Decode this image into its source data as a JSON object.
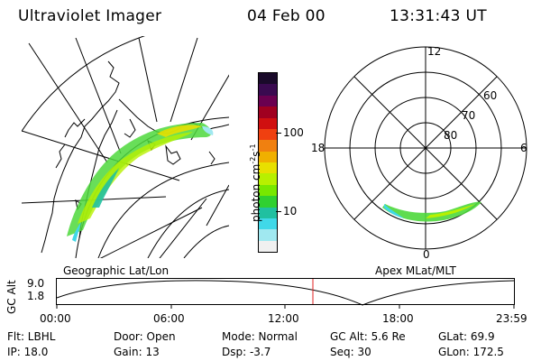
{
  "header": {
    "instrument": "Ultraviolet Imager",
    "date": "04 Feb 00",
    "time": "13:31:43 UT"
  },
  "colorbar": {
    "unit_label": "photon cm",
    "unit_exp1": "-2",
    "unit_s": "s",
    "unit_exp2": "-1",
    "tick_100": "100",
    "tick_10": "10",
    "colors": [
      "#1a0a2a",
      "#3a0a50",
      "#6a0050",
      "#a00020",
      "#d01010",
      "#f04010",
      "#f08010",
      "#f0b000",
      "#e8e000",
      "#b8f000",
      "#78e800",
      "#30d030",
      "#20c0a0",
      "#40d8e8",
      "#a0e8f0",
      "#f0f0f0"
    ]
  },
  "geo_panel": {
    "caption": "Geographic Lat/Lon"
  },
  "polar_panel": {
    "caption": "Apex MLat/MLT",
    "mlt_labels": {
      "top": "12",
      "left": "18",
      "right": "6",
      "bottom": "0"
    },
    "lat_labels": [
      "60",
      "70",
      "80"
    ]
  },
  "altitude_plot": {
    "ylabel": "GC Alt",
    "y_ticks": [
      "9.0",
      "1.8"
    ],
    "x_ticks": [
      "00:00",
      "06:00",
      "12:00",
      "18:00",
      "23:59"
    ],
    "marker_color": "#e02020"
  },
  "info": {
    "filter": "Flt: LBHL",
    "door": "Door: Open",
    "mode": "Mode: Normal",
    "gc_alt": "GC Alt: 5.6 Re",
    "glat": "GLat:  69.9",
    "ip": "IP: 18.0",
    "gain": "Gain: 13",
    "dsp": "Dsp:    -3.7",
    "seq": "Seq: 30",
    "glon": "GLon: 172.5"
  }
}
